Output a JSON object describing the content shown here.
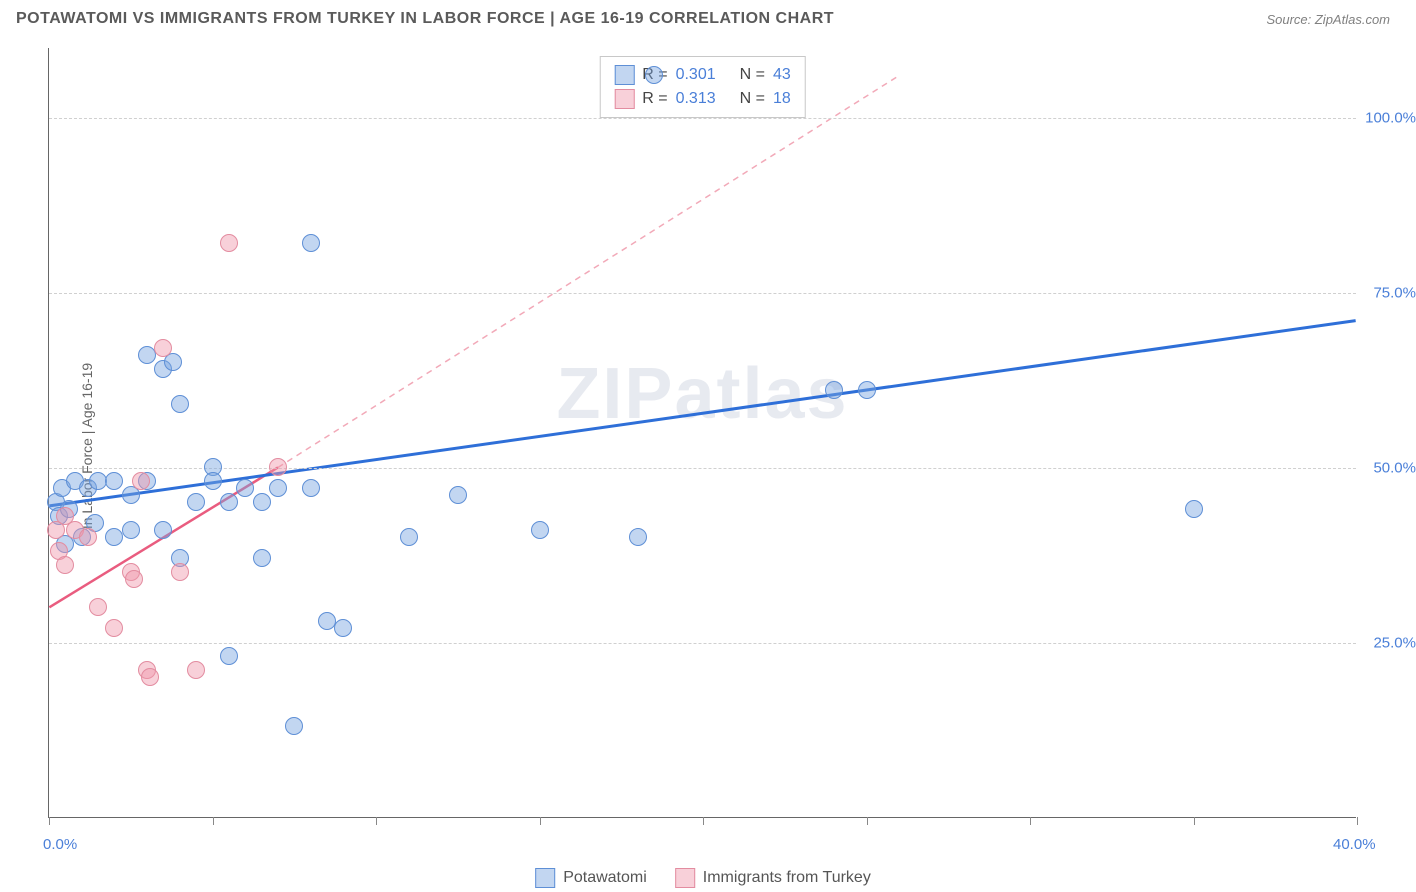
{
  "header": {
    "title": "POTAWATOMI VS IMMIGRANTS FROM TURKEY IN LABOR FORCE | AGE 16-19 CORRELATION CHART",
    "source": "Source: ZipAtlas.com"
  },
  "watermark": "ZIPatlas",
  "chart": {
    "type": "scatter",
    "y_axis_label": "In Labor Force | Age 16-19",
    "xlim": [
      0,
      40
    ],
    "ylim": [
      0,
      110
    ],
    "x_ticks": [
      0,
      5,
      10,
      15,
      20,
      25,
      30,
      35,
      40
    ],
    "x_tick_labels": {
      "0": "0.0%",
      "40": "40.0%"
    },
    "y_gridlines": [
      25,
      50,
      75,
      100
    ],
    "y_grid_labels": {
      "25": "25.0%",
      "50": "50.0%",
      "75": "75.0%",
      "100": "100.0%"
    },
    "background_color": "#ffffff",
    "grid_color": "#d0d0d0",
    "axis_color": "#666666",
    "label_color": "#4a7fd8",
    "marker_radius": 9,
    "series": [
      {
        "name": "Potawatomi",
        "fill": "rgba(120,165,225,0.45)",
        "stroke": "#5e8fd6",
        "points": [
          [
            0.2,
            45
          ],
          [
            0.4,
            47
          ],
          [
            0.3,
            43
          ],
          [
            0.8,
            48
          ],
          [
            1.2,
            47
          ],
          [
            1.5,
            48
          ],
          [
            1.4,
            42
          ],
          [
            2.0,
            48
          ],
          [
            2.5,
            46
          ],
          [
            2.5,
            41
          ],
          [
            3.0,
            48
          ],
          [
            3.0,
            66
          ],
          [
            3.5,
            64
          ],
          [
            3.8,
            65
          ],
          [
            3.5,
            41
          ],
          [
            4.0,
            59
          ],
          [
            4.0,
            37
          ],
          [
            5.0,
            50
          ],
          [
            5.0,
            48
          ],
          [
            5.5,
            23
          ],
          [
            6.0,
            47
          ],
          [
            6.5,
            37
          ],
          [
            7.0,
            47
          ],
          [
            7.5,
            13
          ],
          [
            8.0,
            82
          ],
          [
            8.0,
            47
          ],
          [
            8.5,
            28
          ],
          [
            9.0,
            27
          ],
          [
            11.0,
            40
          ],
          [
            12.5,
            46
          ],
          [
            15.0,
            41
          ],
          [
            18.0,
            40
          ],
          [
            18.5,
            106
          ],
          [
            24.0,
            61
          ],
          [
            25.0,
            61
          ],
          [
            35.0,
            44
          ],
          [
            0.5,
            39
          ],
          [
            1.0,
            40
          ],
          [
            5.5,
            45
          ],
          [
            4.5,
            45
          ],
          [
            6.5,
            45
          ],
          [
            2.0,
            40
          ],
          [
            0.6,
            44
          ]
        ],
        "trend": {
          "x1": 0,
          "y1": 44.5,
          "x2": 40,
          "y2": 71,
          "color": "#2e6fd8",
          "width": 3,
          "dash": "none"
        }
      },
      {
        "name": "Immigrants from Turkey",
        "fill": "rgba(240,150,170,0.45)",
        "stroke": "#e38ca0",
        "points": [
          [
            0.2,
            41
          ],
          [
            0.3,
            38
          ],
          [
            0.5,
            36
          ],
          [
            0.5,
            43
          ],
          [
            0.8,
            41
          ],
          [
            1.2,
            40
          ],
          [
            1.5,
            30
          ],
          [
            2.0,
            27
          ],
          [
            2.5,
            35
          ],
          [
            2.6,
            34
          ],
          [
            2.8,
            48
          ],
          [
            3.0,
            21
          ],
          [
            3.1,
            20
          ],
          [
            3.5,
            67
          ],
          [
            4.0,
            35
          ],
          [
            4.5,
            21
          ],
          [
            5.5,
            82
          ],
          [
            7.0,
            50
          ]
        ],
        "trend_solid": {
          "x1": 0,
          "y1": 30,
          "x2": 7,
          "y2": 50,
          "color": "#e95c7f",
          "width": 2.5,
          "dash": "none"
        },
        "trend_dashed": {
          "x1": 7,
          "y1": 50,
          "x2": 26,
          "y2": 106,
          "color": "#f2a9b8",
          "width": 1.5,
          "dash": "6,5"
        }
      }
    ],
    "stats": [
      {
        "swatch_fill": "rgba(120,165,225,0.45)",
        "swatch_stroke": "#5e8fd6",
        "r": "0.301",
        "n": "43"
      },
      {
        "swatch_fill": "rgba(240,150,170,0.45)",
        "swatch_stroke": "#e38ca0",
        "r": "0.313",
        "n": "18"
      }
    ],
    "legend": [
      {
        "label": "Potawatomi",
        "fill": "rgba(120,165,225,0.45)",
        "stroke": "#5e8fd6"
      },
      {
        "label": "Immigrants from Turkey",
        "fill": "rgba(240,150,170,0.45)",
        "stroke": "#e38ca0"
      }
    ]
  }
}
